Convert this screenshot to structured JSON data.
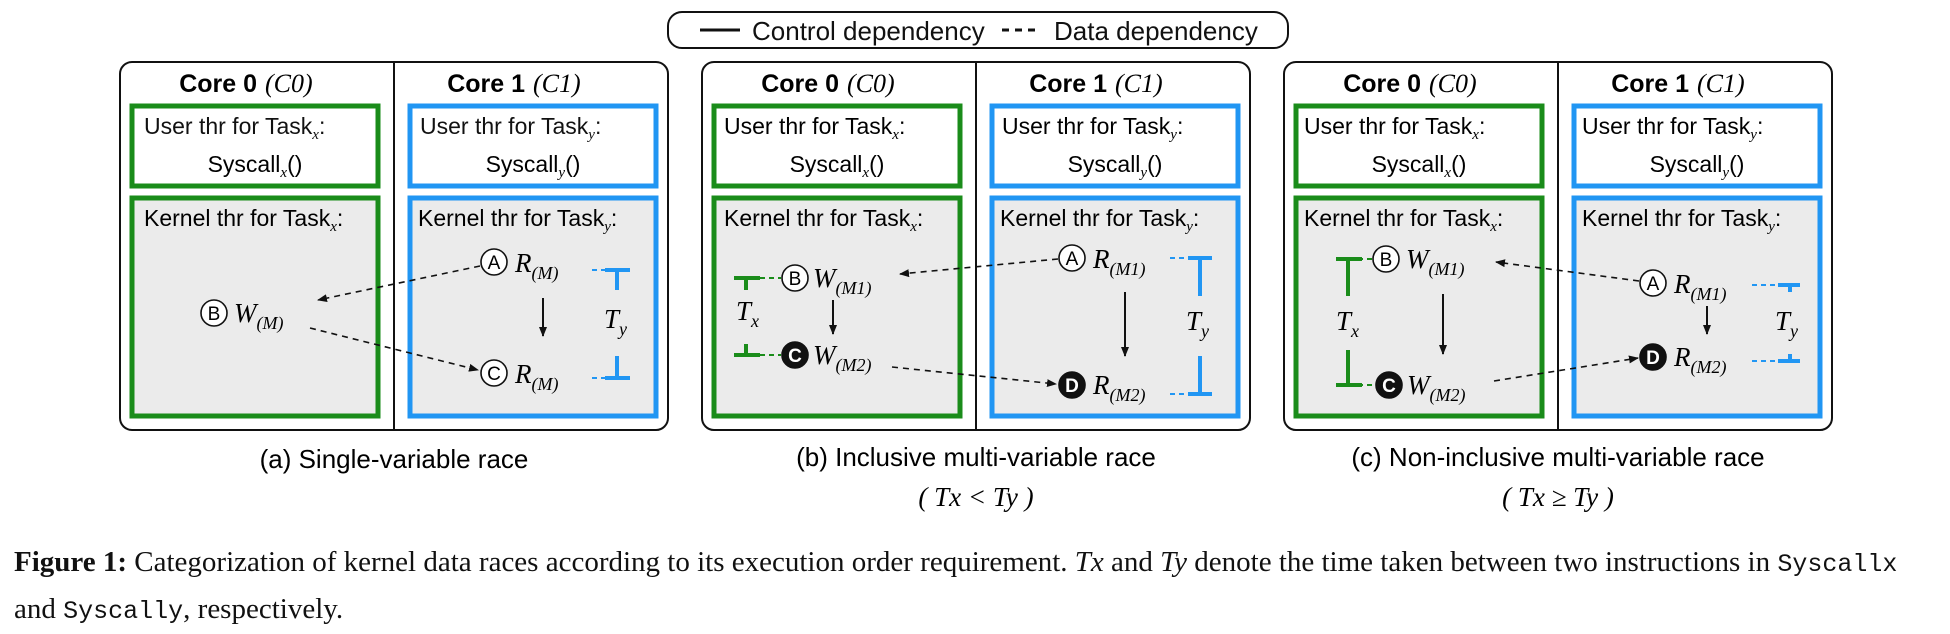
{
  "legend": {
    "control": "Control dependency",
    "data": "Data dependency"
  },
  "colors": {
    "green": "#1a8c1a",
    "blue": "#2196f3",
    "box_fill": "#ebebeb",
    "text": "#111111"
  },
  "panels": [
    {
      "caption": "(a) Single-variable race",
      "core0": "Core 0",
      "core0_sym": "C0",
      "core1": "Core 1",
      "core1_sym": "C1",
      "user_x_label": "User thr for Task",
      "user_x_call": "Syscall",
      "user_y_label": "User thr for Task",
      "user_y_call": "Syscall",
      "kernel_x_label": "Kernel thr for Task",
      "kernel_y_label": "Kernel thr for Task",
      "nodes": {
        "A": "A",
        "B": "B",
        "C": "C"
      },
      "ops": {
        "A": "R",
        "B": "W",
        "C": "R",
        "A_sub": "(M)",
        "B_sub": "(M)",
        "C_sub": "(M)"
      },
      "Ty": "T"
    },
    {
      "caption": "(b) Inclusive multi-variable race",
      "condition": "( Tx < Ty )",
      "core0": "Core 0",
      "core0_sym": "C0",
      "core1": "Core 1",
      "core1_sym": "C1",
      "user_x_label": "User thr for Task",
      "user_x_call": "Syscall",
      "user_y_label": "User thr for Task",
      "user_y_call": "Syscall",
      "kernel_x_label": "Kernel thr for Task",
      "kernel_y_label": "Kernel thr for Task",
      "nodes": {
        "A": "A",
        "B": "B",
        "C": "C",
        "D": "D"
      },
      "ops": {
        "A": "R",
        "B": "W",
        "C": "W",
        "D": "R",
        "A_sub": "(M1)",
        "B_sub": "(M1)",
        "C_sub": "(M2)",
        "D_sub": "(M2)"
      },
      "Tx": "T",
      "Ty": "T"
    },
    {
      "caption": "(c) Non-inclusive multi-variable race",
      "condition": "( Tx ≥ Ty )",
      "core0": "Core 0",
      "core0_sym": "C0",
      "core1": "Core 1",
      "core1_sym": "C1",
      "user_x_label": "User thr for Task",
      "user_x_call": "Syscall",
      "user_y_label": "User thr for Task",
      "user_y_call": "Syscall",
      "kernel_x_label": "Kernel thr for Task",
      "kernel_y_label": "Kernel thr for Task",
      "nodes": {
        "A": "A",
        "B": "B",
        "C": "C",
        "D": "D"
      },
      "ops": {
        "A": "R",
        "B": "W",
        "C": "W",
        "D": "R",
        "A_sub": "(M1)",
        "B_sub": "(M1)",
        "C_sub": "(M2)",
        "D_sub": "(M2)"
      },
      "Tx": "T",
      "Ty": "T"
    }
  ],
  "caption": {
    "label": "Figure 1:",
    "text1": "Categorization of kernel data races according to its execution order requirement.",
    "Tx": "Tx",
    "and": "and",
    "Ty": "Ty",
    "text2": "denote the time taken between two instructions in",
    "syscall_x": "Syscallx",
    "and2": "and",
    "syscall_y": "Syscally",
    "text3": ", respectively."
  }
}
